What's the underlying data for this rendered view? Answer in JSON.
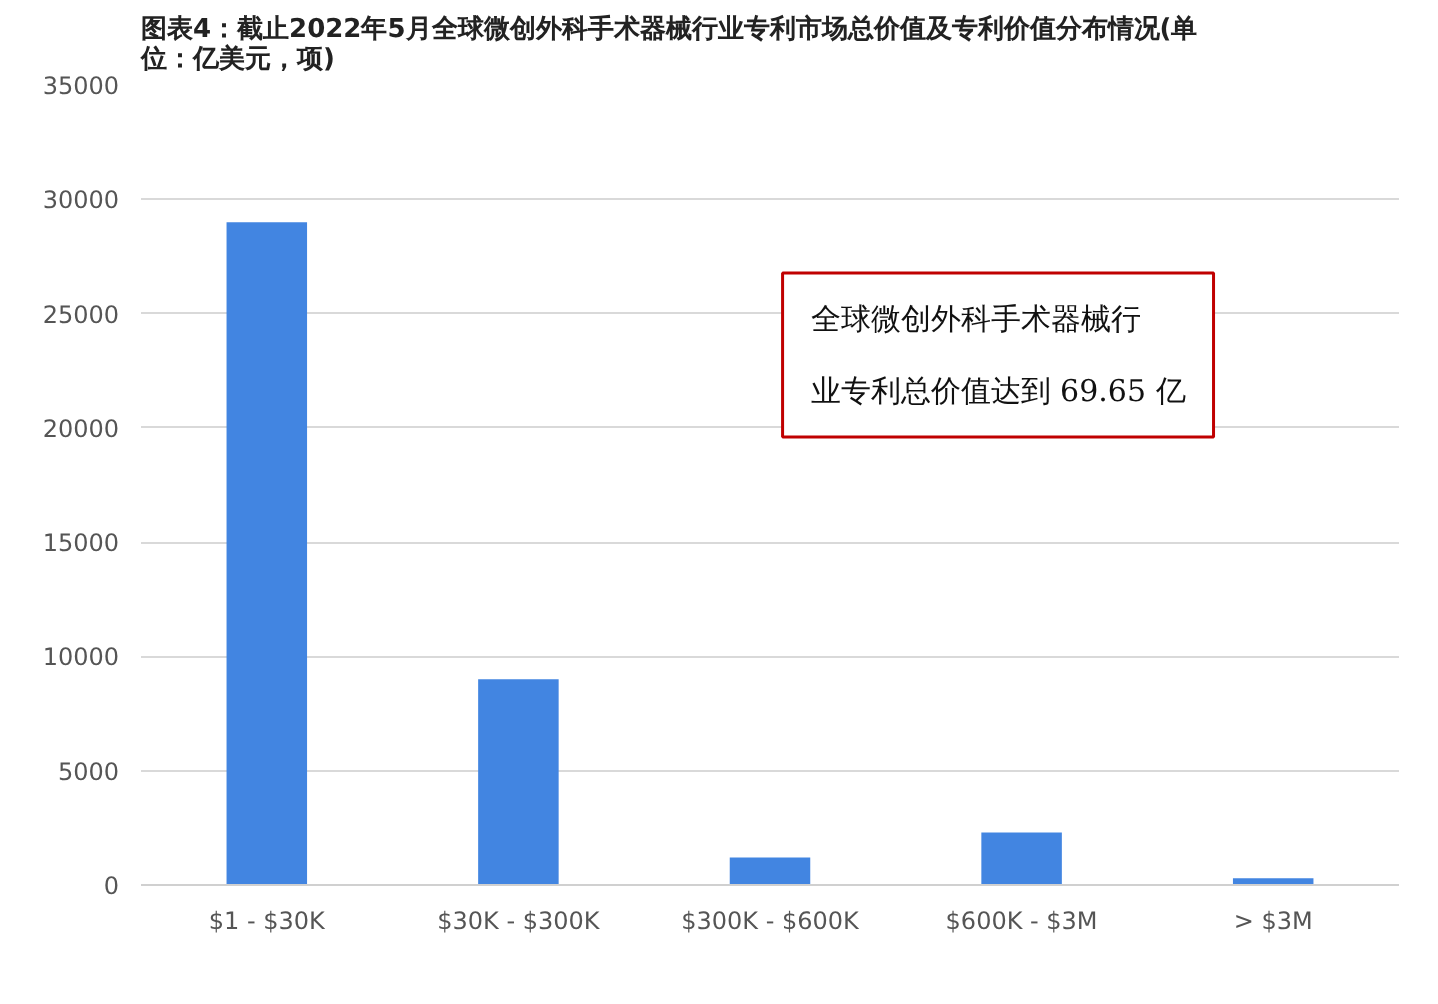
{
  "chart_data": {
    "type": "bar",
    "title": "图表4：截止2022年5月全球微创外科手术器械行业专利市场总价值及专利价值分布情况(单位：亿美元，项)",
    "categories": [
      "$1 - $30K",
      "$30K - $300K",
      "$300K - $600K",
      "$600K - $3M",
      "> $3M"
    ],
    "values": [
      29000,
      9000,
      1200,
      2300,
      300
    ],
    "color": "#4285e1",
    "ylim": [
      0,
      35000
    ],
    "yticks": [
      0,
      5000,
      10000,
      15000,
      20000,
      25000,
      30000,
      35000
    ],
    "grid": "y",
    "annotations": [
      {
        "text": "全球微创外科手术器械行业专利总价值达到 69.65 亿"
      }
    ]
  }
}
